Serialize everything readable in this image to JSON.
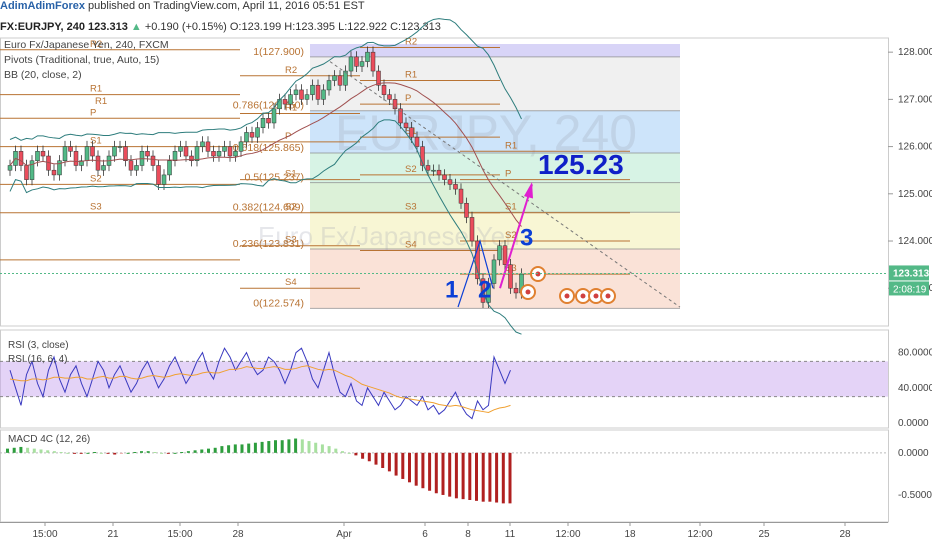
{
  "header": {
    "brand": "AdimAdimForex",
    "published": "published on TradingView.com, April 11, 2016 05:51 EST",
    "symbol": "FX:EURJPY, 240",
    "last": "123.313",
    "change": "+0.190 (+0.15%)",
    "o": "O:123.199",
    "h": "H:123.395",
    "l": "L:122.922",
    "c": "C:123.313"
  },
  "legend": {
    "title": "Euro Fx/Japanese Yen, 240, FXCM",
    "pivots": "Pivots (Traditional, true, Auto, 15)",
    "bb": "BB (20, close, 2)"
  },
  "watermark": {
    "symbol": "EURJPY, 240",
    "name": "Euro Fx/Japanese Yen"
  },
  "annotations": {
    "target": "125.23",
    "wave1": "1",
    "wave2": "2",
    "wave3": "3"
  },
  "fib_labels": [
    "1(127.900)",
    "0.786(126.760)",
    "0.618(125.865)",
    "0.5(125.237)",
    "0.382(124.609)",
    "0.236(123.831)",
    "0(122.574)"
  ],
  "pivot_labels": {
    "left": [
      "R2",
      "R1",
      "P",
      "S1",
      "S2",
      "S3"
    ],
    "middle": [
      "R2",
      "R1",
      "P",
      "S1",
      "S2",
      "S3",
      "S4"
    ],
    "right": [
      "R2",
      "R1",
      "P",
      "S1",
      "S2",
      "S3",
      "S4"
    ],
    "far": [
      "R1",
      "P",
      "S1",
      "S2",
      "S3",
      "S4"
    ]
  },
  "price_axis": [
    "128.000",
    "127.000",
    "126.000",
    "125.000",
    "124.000",
    "123.000"
  ],
  "price_badge": "123.313",
  "time_badge": "2:08:19",
  "rsi": {
    "label1": "RSI (3, close)",
    "label2": "RSI (16, 6, 4)",
    "axis": [
      "80.0000",
      "40.0000",
      "0.0000"
    ]
  },
  "macd": {
    "label": "MACD 4C (12, 26)",
    "axis": [
      "0.0000",
      "-0.5000"
    ]
  },
  "time_axis": [
    "15:00",
    "21",
    "15:00",
    "28",
    "Apr",
    "6",
    "8",
    "11",
    "12:00",
    "18",
    "12:00",
    "25",
    "28"
  ],
  "colors": {
    "bull": "#53b987",
    "bear": "#eb4d5c",
    "pivot": "#b87333",
    "bb": "#2e7d7d",
    "rsi": "#3a3ac0",
    "rsi_signal": "#f0a030",
    "fib_purple": "#b0a8e8",
    "arrow": "#e020d0",
    "wave": "#0b3fd6"
  },
  "chart_data": {
    "type": "candlestick",
    "symbol": "FX:EURJPY",
    "timeframe": "240",
    "ylim": [
      122.2,
      128.3
    ],
    "yticks": [
      123,
      124,
      125,
      126,
      127,
      128
    ],
    "fib_levels": [
      {
        "ratio": "1",
        "price": 127.9
      },
      {
        "ratio": "0.786",
        "price": 126.76
      },
      {
        "ratio": "0.618",
        "price": 125.865
      },
      {
        "ratio": "0.5",
        "price": 125.237
      },
      {
        "ratio": "0.382",
        "price": 124.609
      },
      {
        "ratio": "0.236",
        "price": 123.831
      },
      {
        "ratio": "0",
        "price": 122.574
      }
    ],
    "target_price": 125.23,
    "last_price": 123.313,
    "ohlc_last": {
      "o": 123.199,
      "h": 123.395,
      "l": 122.922,
      "c": 123.313
    },
    "close_series": [
      125.6,
      125.9,
      125.6,
      125.3,
      125.7,
      125.9,
      125.8,
      125.5,
      125.4,
      125.7,
      126.0,
      125.9,
      125.6,
      125.7,
      126.0,
      125.8,
      125.5,
      125.6,
      125.8,
      126.0,
      126.0,
      125.7,
      125.5,
      125.6,
      125.9,
      125.8,
      125.6,
      125.2,
      125.4,
      125.7,
      125.9,
      126.0,
      125.8,
      125.7,
      126.0,
      126.1,
      125.9,
      125.8,
      125.9,
      126.0,
      125.8,
      125.9,
      126.1,
      126.3,
      126.2,
      126.4,
      126.6,
      126.5,
      126.8,
      127.0,
      126.9,
      127.1,
      127.2,
      127.0,
      127.1,
      127.3,
      127.0,
      127.2,
      127.4,
      127.5,
      127.3,
      127.6,
      127.9,
      127.7,
      127.8,
      128.0,
      127.6,
      127.3,
      127.1,
      127.0,
      126.8,
      126.5,
      126.4,
      126.2,
      126.0,
      125.6,
      125.5,
      125.5,
      125.4,
      125.3,
      125.2,
      125.1,
      124.8,
      124.5,
      124.0,
      123.2,
      122.7,
      123.1,
      123.6,
      123.9,
      123.5,
      123.0,
      122.9,
      123.3
    ]
  },
  "rsi_data": {
    "ylim": [
      0,
      100
    ],
    "bands": [
      70,
      30
    ],
    "rsi3": [
      60,
      40,
      20,
      55,
      70,
      45,
      30,
      60,
      75,
      50,
      35,
      55,
      65,
      45,
      30,
      50,
      70,
      60,
      40,
      55,
      65,
      50,
      35,
      45,
      60,
      70,
      55,
      40,
      50,
      65,
      75,
      60,
      45,
      55,
      70,
      80,
      60,
      50,
      70,
      85,
      75,
      60,
      70,
      80,
      65,
      55,
      60,
      75,
      70,
      60,
      45,
      60,
      80,
      85,
      70,
      50,
      40,
      60,
      80,
      55,
      35,
      30,
      45,
      25,
      20,
      40,
      30,
      20,
      35,
      25,
      15,
      20,
      30,
      25,
      20,
      30,
      15,
      20,
      10,
      15,
      25,
      35,
      20,
      10,
      5,
      25,
      15,
      20,
      75,
      60,
      45,
      60
    ],
    "signal": [
      50,
      49,
      48,
      48,
      50,
      50,
      49,
      50,
      52,
      52,
      51,
      51,
      52,
      52,
      50,
      50,
      52,
      53,
      51,
      51,
      53,
      53,
      51,
      50,
      51,
      53,
      54,
      53,
      52,
      53,
      55,
      56,
      55,
      54,
      55,
      57,
      58,
      57,
      57,
      59,
      61,
      61,
      62,
      64,
      63,
      62,
      62,
      63,
      64,
      63,
      61,
      61,
      62,
      64,
      65,
      63,
      61,
      60,
      61,
      60,
      57,
      54,
      52,
      48,
      44,
      42,
      40,
      38,
      36,
      34,
      31,
      29,
      28,
      27,
      26,
      25,
      24,
      23,
      21,
      20,
      19,
      20,
      19,
      17,
      15,
      14,
      13,
      12,
      15,
      17,
      18,
      20
    ]
  },
  "macd_data": {
    "ylim": [
      -0.75,
      0.2
    ],
    "values": [
      0.05,
      0.06,
      0.07,
      0.06,
      0.05,
      0.04,
      0.03,
      0.02,
      0.01,
      0.0,
      -0.01,
      -0.01,
      0.0,
      0.01,
      0.0,
      -0.01,
      -0.02,
      -0.01,
      0.0,
      0.01,
      0.02,
      0.02,
      0.01,
      0.0,
      -0.01,
      0.0,
      0.01,
      0.02,
      0.03,
      0.04,
      0.05,
      0.06,
      0.08,
      0.09,
      0.1,
      0.1,
      0.11,
      0.12,
      0.13,
      0.14,
      0.15,
      0.15,
      0.16,
      0.17,
      0.16,
      0.14,
      0.12,
      0.1,
      0.08,
      0.05,
      0.02,
      0.0,
      -0.03,
      -0.07,
      -0.1,
      -0.14,
      -0.18,
      -0.22,
      -0.27,
      -0.31,
      -0.35,
      -0.39,
      -0.42,
      -0.45,
      -0.48,
      -0.5,
      -0.52,
      -0.54,
      -0.55,
      -0.56,
      -0.57,
      -0.58,
      -0.58,
      -0.59,
      -0.6,
      -0.6
    ]
  }
}
